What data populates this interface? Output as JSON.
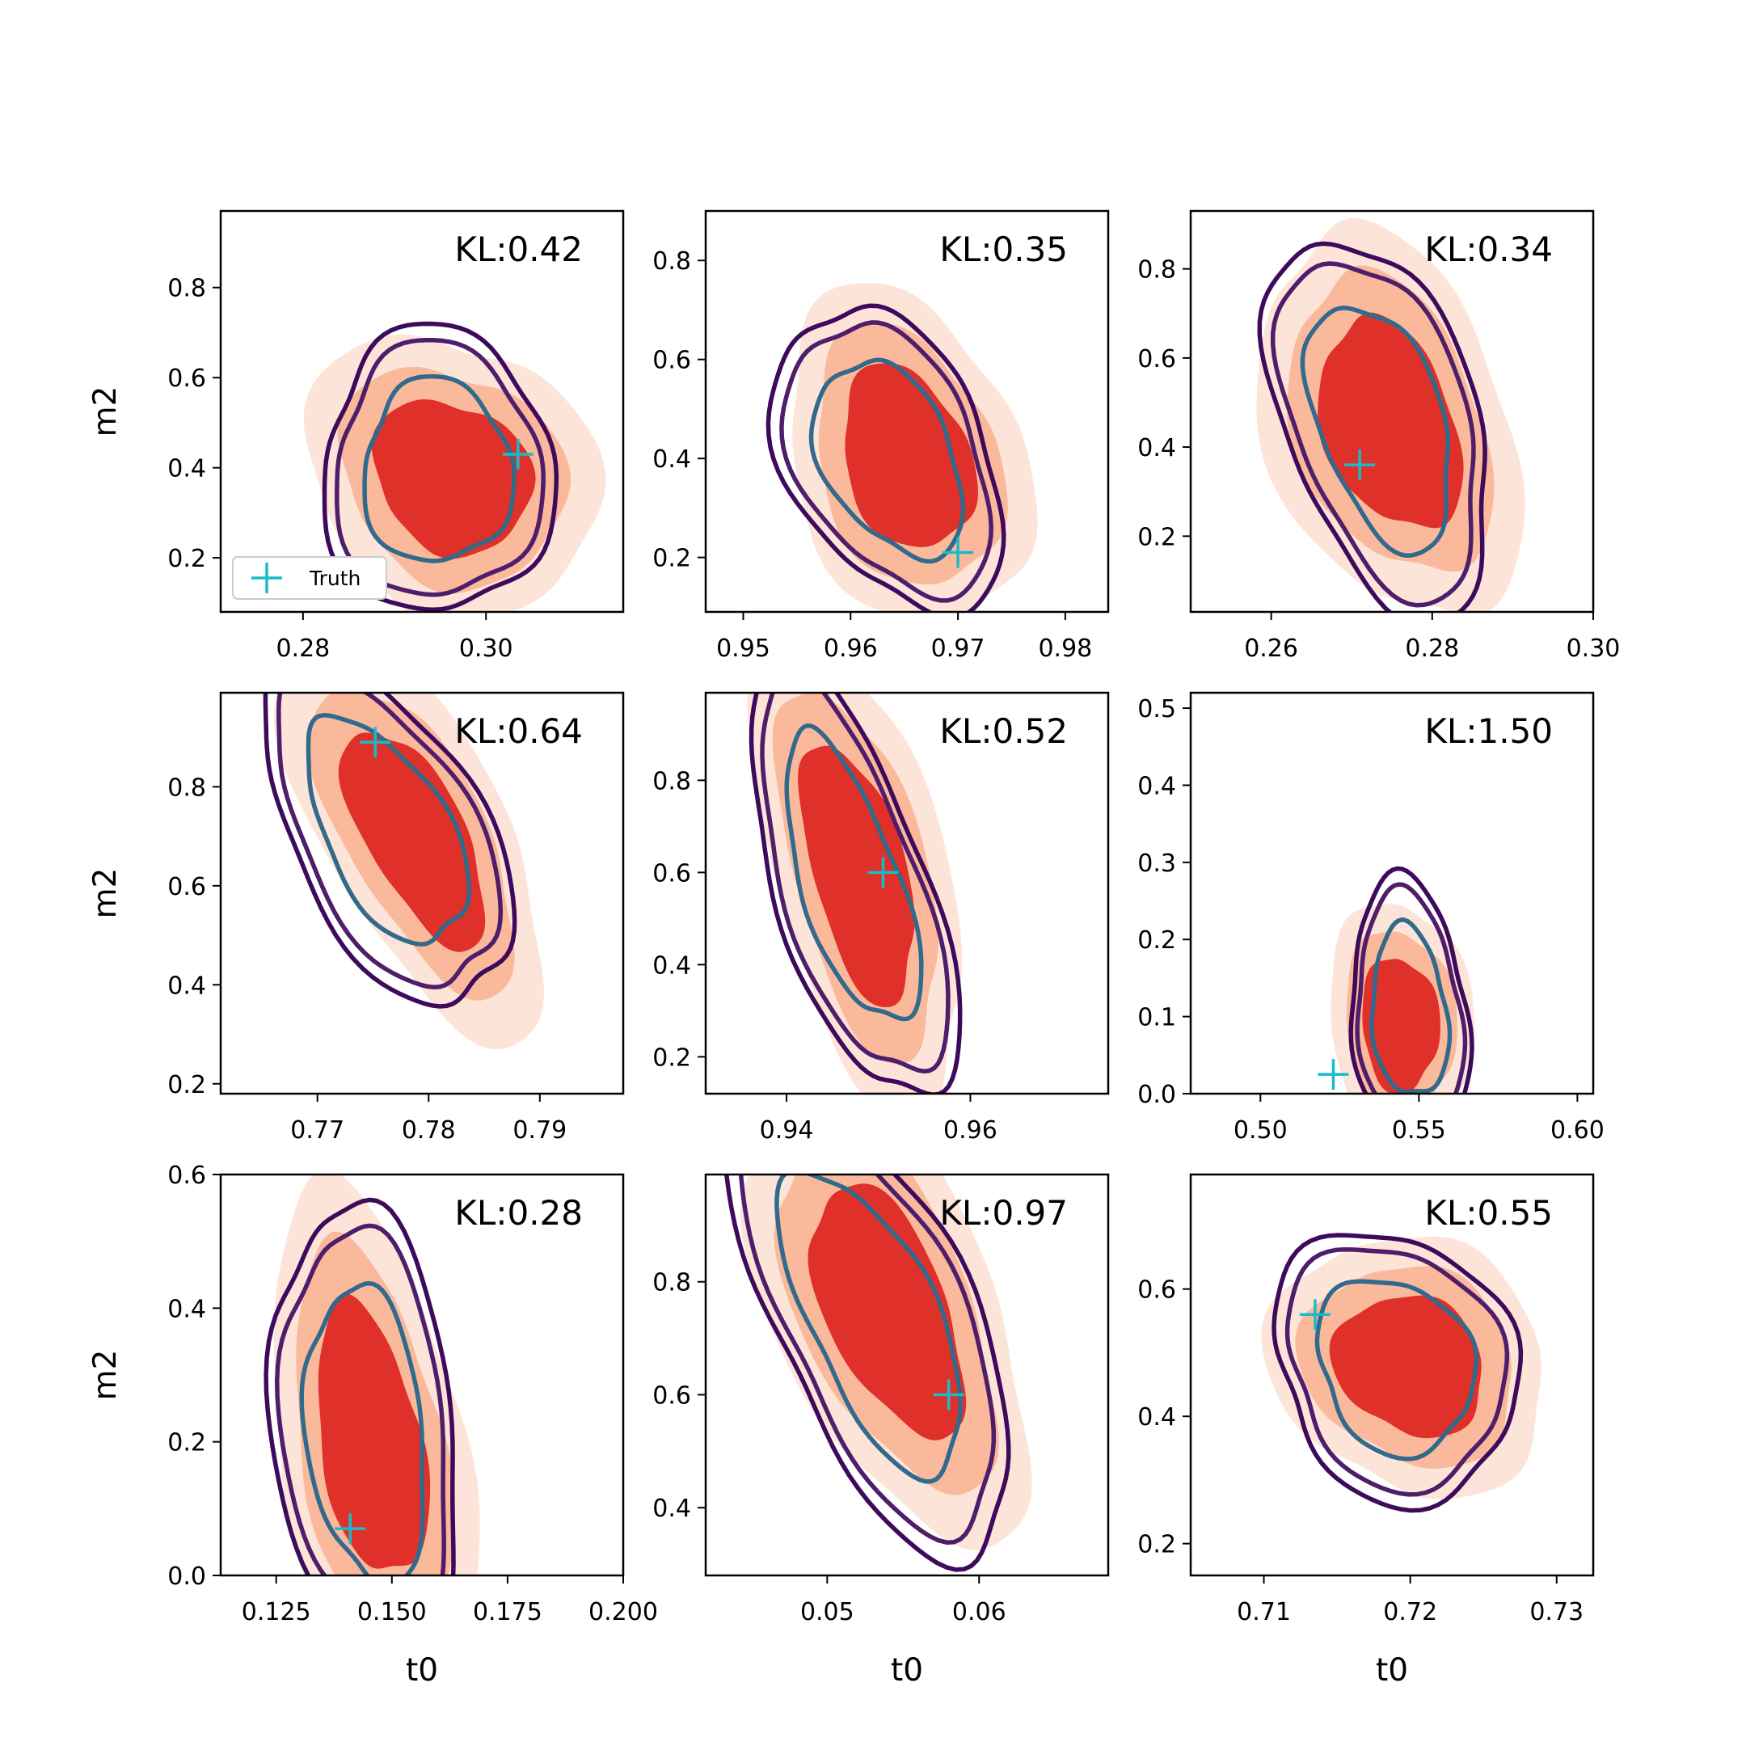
{
  "figure": {
    "background": "#ffffff"
  },
  "colors": {
    "fill_outer": "#fde4d8",
    "fill_middle": "#fbb99c",
    "fill_inner": "#e0302a",
    "contour_outer": "#3d0a5c",
    "contour_middle": "#4f1e6b",
    "contour_inner": "#326a8c",
    "truth_marker": "#17bcc9"
  },
  "legend": {
    "label": "Truth",
    "marker": "plus"
  },
  "chart_data": [
    {
      "type": "contour",
      "kl": "KL:0.42",
      "xlabel": "",
      "ylabel": "m2",
      "xlim": [
        0.271,
        0.315
      ],
      "ylim": [
        0.08,
        0.97
      ],
      "xticks": [
        "0.28",
        "0.30"
      ],
      "yticks": [
        "0.2",
        "0.4",
        "0.6",
        "0.8"
      ],
      "center": [
        0.2963,
        0.38
      ],
      "spread": [
        0.0088,
        0.185
      ],
      "tilt": -0.12,
      "contour_center": [
        0.2947,
        0.39
      ],
      "contour_spread": [
        0.0083,
        0.2
      ],
      "contour_tilt": -0.1,
      "truth": [
        0.3035,
        0.43
      ],
      "legend": true
    },
    {
      "type": "contour",
      "kl": "KL:0.35",
      "xlabel": "",
      "ylabel": "",
      "xlim": [
        0.9465,
        0.984
      ],
      "ylim": [
        0.09,
        0.9
      ],
      "xticks": [
        "0.95",
        "0.96",
        "0.97",
        "0.98"
      ],
      "yticks": [
        "0.2",
        "0.4",
        "0.6",
        "0.8"
      ],
      "center": [
        0.9653,
        0.4
      ],
      "spread": [
        0.0068,
        0.18
      ],
      "tilt": -0.3,
      "contour_center": [
        0.9636,
        0.4
      ],
      "contour_spread": [
        0.0066,
        0.19
      ],
      "contour_tilt": -0.4,
      "truth": [
        0.97,
        0.21
      ],
      "legend": false
    },
    {
      "type": "contour",
      "kl": "KL:0.34",
      "xlabel": "",
      "ylabel": "",
      "xlim": [
        0.25,
        0.3
      ],
      "ylim": [
        0.03,
        0.93
      ],
      "xticks": [
        "0.26",
        "0.28",
        "0.30"
      ],
      "yticks": [
        "0.2",
        "0.4",
        "0.6",
        "0.8"
      ],
      "center": [
        0.2748,
        0.45
      ],
      "spread": [
        0.0092,
        0.24
      ],
      "tilt": -0.45,
      "contour_center": [
        0.2736,
        0.45
      ],
      "contour_spread": [
        0.0092,
        0.24
      ],
      "contour_tilt": -0.5,
      "truth": [
        0.271,
        0.36
      ],
      "legend": false
    },
    {
      "type": "contour",
      "kl": "KL:0.64",
      "xlabel": "",
      "ylabel": "m2",
      "xlim": [
        0.7613,
        0.7975
      ],
      "ylim": [
        0.18,
        0.99
      ],
      "xticks": [
        "0.77",
        "0.78",
        "0.79"
      ],
      "yticks": [
        "0.2",
        "0.4",
        "0.6",
        "0.8"
      ],
      "center": [
        0.7788,
        0.7
      ],
      "spread": [
        0.0066,
        0.18
      ],
      "tilt": -0.82,
      "contour_center": [
        0.7762,
        0.71
      ],
      "contour_spread": [
        0.0072,
        0.19
      ],
      "contour_tilt": -0.82,
      "truth": [
        0.7752,
        0.89
      ],
      "legend": false
    },
    {
      "type": "contour",
      "kl": "KL:0.52",
      "xlabel": "",
      "ylabel": "",
      "xlim": [
        0.9312,
        0.975
      ],
      "ylim": [
        0.12,
        0.99
      ],
      "xticks": [
        "0.94",
        "0.96"
      ],
      "yticks": [
        "0.2",
        "0.4",
        "0.6",
        "0.8"
      ],
      "center": [
        0.9478,
        0.6
      ],
      "spread": [
        0.0068,
        0.24
      ],
      "tilt": -0.78,
      "contour_center": [
        0.947,
        0.58
      ],
      "contour_spread": [
        0.007,
        0.25
      ],
      "contour_tilt": -0.8,
      "truth": [
        0.9505,
        0.6
      ],
      "legend": false
    },
    {
      "type": "contour",
      "kl": "KL:1.50",
      "xlabel": "",
      "ylabel": "",
      "xlim": [
        0.478,
        0.605
      ],
      "ylim": [
        0.0,
        0.52
      ],
      "xticks": [
        "0.50",
        "0.55",
        "0.60"
      ],
      "yticks": [
        "0.0",
        "0.1",
        "0.2",
        "0.3",
        "0.4",
        "0.5"
      ],
      "center": [
        0.544,
        0.09
      ],
      "spread": [
        0.0125,
        0.095
      ],
      "tilt": -0.15,
      "contour_center": [
        0.547,
        0.105
      ],
      "contour_spread": [
        0.0125,
        0.105
      ],
      "contour_tilt": -0.15,
      "truth": [
        0.523,
        0.025
      ],
      "legend": false
    },
    {
      "type": "contour",
      "kl": "KL:0.28",
      "xlabel": "t0",
      "ylabel": "m2",
      "xlim": [
        0.113,
        0.2
      ],
      "ylim": [
        0.0,
        0.6
      ],
      "xticks": [
        "0.125",
        "0.150",
        "0.175",
        "0.200"
      ],
      "yticks": [
        "0.0",
        "0.2",
        "0.4",
        "0.6"
      ],
      "center": [
        0.1455,
        0.2
      ],
      "spread": [
        0.0125,
        0.2
      ],
      "tilt": -0.35,
      "contour_center": [
        0.1445,
        0.21
      ],
      "contour_spread": [
        0.0128,
        0.22
      ],
      "contour_tilt": -0.35,
      "truth": [
        0.141,
        0.07
      ],
      "legend": false
    },
    {
      "type": "contour",
      "kl": "KL:0.97",
      "xlabel": "t0",
      "ylabel": "",
      "xlim": [
        0.042,
        0.0685
      ],
      "ylim": [
        0.28,
        0.99
      ],
      "xticks": [
        "0.05",
        "0.06"
      ],
      "yticks": [
        "0.4",
        "0.6",
        "0.8"
      ],
      "center": [
        0.054,
        0.75
      ],
      "spread": [
        0.0055,
        0.19
      ],
      "tilt": -0.82,
      "contour_center": [
        0.053,
        0.73
      ],
      "contour_spread": [
        0.0058,
        0.21
      ],
      "contour_tilt": -0.82,
      "truth": [
        0.058,
        0.6
      ],
      "legend": false
    },
    {
      "type": "contour",
      "kl": "KL:0.55",
      "xlabel": "t0",
      "ylabel": "",
      "xlim": [
        0.705,
        0.7325
      ],
      "ylim": [
        0.15,
        0.78
      ],
      "xticks": [
        "0.71",
        "0.72",
        "0.73"
      ],
      "yticks": [
        "0.2",
        "0.4",
        "0.6"
      ],
      "center": [
        0.72,
        0.48
      ],
      "spread": [
        0.0052,
        0.12
      ],
      "tilt": -0.2,
      "contour_center": [
        0.719,
        0.48
      ],
      "contour_spread": [
        0.0056,
        0.13
      ],
      "contour_tilt": -0.2,
      "truth": [
        0.7135,
        0.56
      ],
      "legend": false
    }
  ]
}
